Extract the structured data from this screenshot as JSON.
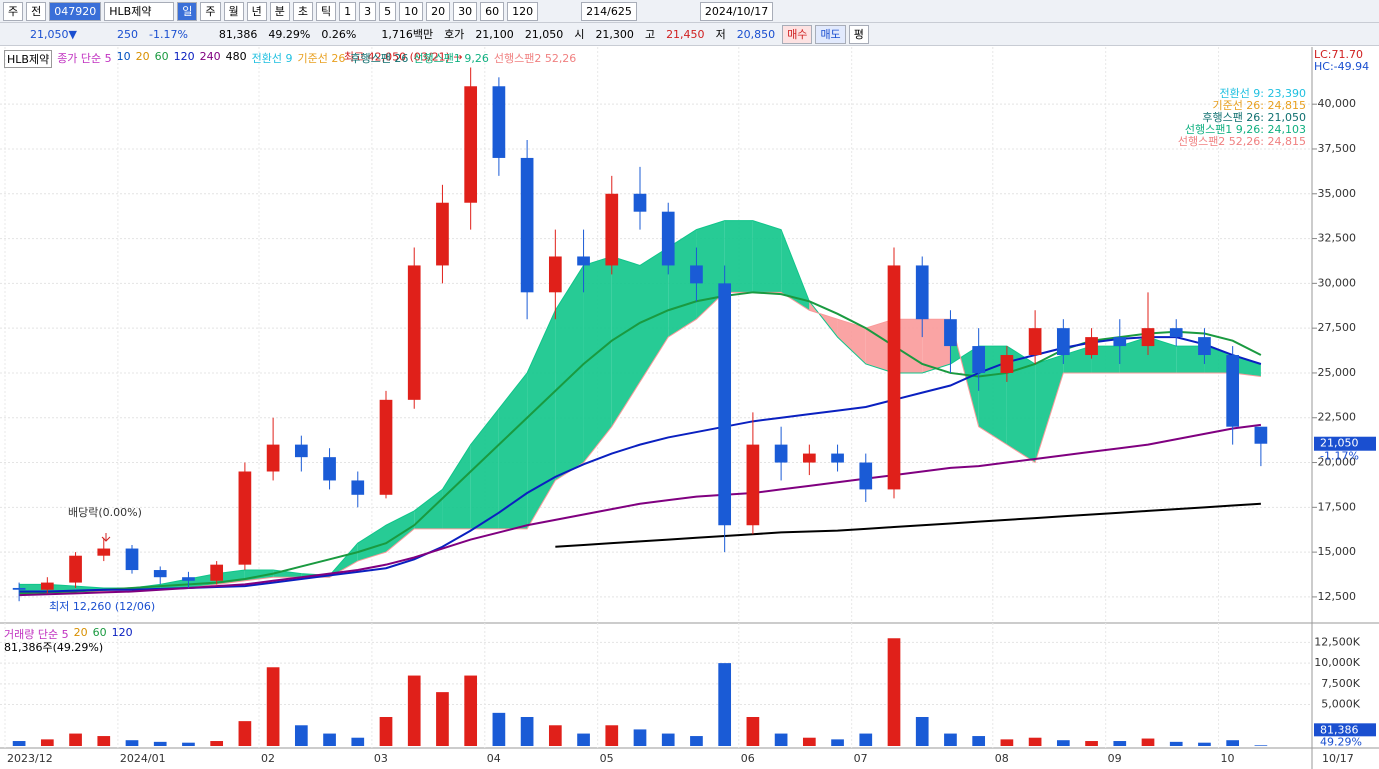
{
  "toolbar": {
    "row1": [
      "주",
      "전",
      "047920",
      "HLB제약",
      "일",
      "주",
      "월",
      "년",
      "분",
      "초",
      "틱",
      "1",
      "3",
      "5",
      "10",
      "20",
      "30",
      "60",
      "120",
      "214/625",
      "2024/10/17"
    ],
    "row2": [
      "21,050▼",
      "250",
      "-1.17%",
      "81,386",
      "49.29%",
      "0.26%",
      "1,716백만",
      "호가",
      "21,100",
      "21,050",
      "시",
      "21,300",
      "고",
      "21,450",
      "저",
      "20,850",
      "매수",
      "매도",
      "평"
    ]
  },
  "chart_data": {
    "type": "candlestick",
    "name": "HLB제약",
    "legend_prefix": [
      "종가 단순 5",
      "10",
      "20"
    ],
    "ichimoku_legend": [
      {
        "text": "전환선 9",
        "color": "#20c0e0"
      },
      {
        "text": "기준선 26",
        "color": "#e8a020"
      },
      {
        "text": "후행스팬 26",
        "color": "#107070"
      },
      {
        "text": "선행스팬1 9,26",
        "color": "#10b080"
      },
      {
        "text": "선행스팬2 52,26",
        "color": "#f08080"
      }
    ],
    "ichimoku_values": [
      {
        "text": "전환선 9: 23,390",
        "color": "#20c0e0"
      },
      {
        "text": "기준선 26: 24,815",
        "color": "#e8a020"
      },
      {
        "text": "후행스팬 26: 21,050",
        "color": "#107070"
      },
      {
        "text": "선행스팬1 9,26: 24,103",
        "color": "#10b080"
      },
      {
        "text": "선행스팬2 52,26: 24,815",
        "color": "#f08080"
      }
    ],
    "corner_labels": [
      "LC:71.70",
      "HC:-49.94"
    ],
    "annotations": [
      "최고 42,050 (03/21) →",
      "최저 12,260 (12/06)",
      "배당락(0.00%)"
    ],
    "last_price_label": "21,050",
    "last_change_label": "-1.17%",
    "last_date": "10/17",
    "categories": [
      "2023/12",
      null,
      null,
      null,
      "2024/01",
      null,
      null,
      null,
      null,
      "02",
      null,
      null,
      null,
      "03",
      null,
      null,
      null,
      "04",
      null,
      null,
      null,
      "05",
      null,
      null,
      null,
      null,
      "06",
      null,
      null,
      null,
      "07",
      null,
      null,
      null,
      null,
      "08",
      null,
      null,
      null,
      "09",
      null,
      null,
      null,
      "10",
      null
    ],
    "open": [
      13000,
      12900,
      13300,
      14800,
      15200,
      14000,
      13600,
      13400,
      14300,
      19500,
      21000,
      20300,
      19000,
      18200,
      23500,
      31000,
      34500,
      41000,
      37000,
      29500,
      31500,
      31000,
      35000,
      34000,
      31000,
      30000,
      16500,
      21000,
      20000,
      20500,
      20000,
      18500,
      31000,
      28000,
      26500,
      25000,
      26000,
      27500,
      26000,
      27000,
      26500,
      27500,
      27000,
      26000,
      22000
    ],
    "high": [
      13300,
      13600,
      15000,
      15800,
      15400,
      14200,
      13900,
      14500,
      20000,
      22500,
      21500,
      20800,
      19500,
      24000,
      32000,
      35500,
      42050,
      41500,
      38000,
      33000,
      33000,
      36000,
      36500,
      34500,
      32000,
      31000,
      22800,
      22000,
      21000,
      21000,
      20500,
      32000,
      31500,
      28500,
      27500,
      26500,
      28500,
      28000,
      27500,
      28000,
      29500,
      28000,
      27500,
      26500,
      22000
    ],
    "low": [
      12260,
      12700,
      13000,
      14500,
      13800,
      13200,
      13000,
      13200,
      14000,
      19000,
      19500,
      18500,
      17500,
      18000,
      23000,
      30000,
      33000,
      36000,
      28000,
      28000,
      29500,
      30500,
      33000,
      30500,
      29000,
      15000,
      16000,
      19000,
      19300,
      19500,
      17800,
      18000,
      27000,
      25000,
      24000,
      24500,
      25500,
      25500,
      25800,
      25500,
      26000,
      26500,
      25500,
      21000,
      19800
    ],
    "close": [
      12900,
      13300,
      14800,
      15200,
      14000,
      13600,
      13400,
      14300,
      19500,
      21000,
      20300,
      19000,
      18200,
      23500,
      31000,
      34500,
      41000,
      37000,
      29500,
      31500,
      31000,
      35000,
      34000,
      31000,
      30000,
      16500,
      21000,
      20000,
      20500,
      20000,
      18500,
      31000,
      28000,
      26500,
      25000,
      26000,
      27500,
      26000,
      27000,
      26500,
      27500,
      27000,
      26000,
      22000,
      21050
    ],
    "series": [
      {
        "name": "60",
        "color": "#1a9a40",
        "values": [
          12700,
          12750,
          12800,
          12900,
          13000,
          13100,
          13200,
          13300,
          13500,
          13800,
          14200,
          14600,
          15000,
          15500,
          16500,
          18000,
          19500,
          21000,
          22500,
          24000,
          25500,
          26800,
          27800,
          28500,
          29000,
          29300,
          29500,
          29400,
          29000,
          28300,
          27500,
          26500,
          25500,
          25000,
          24800,
          25000,
          25500,
          26300,
          26800,
          27000,
          27200,
          27300,
          27200,
          26800,
          26000
        ]
      },
      {
        "name": "120",
        "color": "#0a20c0",
        "values": [
          12800,
          12800,
          12850,
          12900,
          12900,
          12950,
          13000,
          13050,
          13100,
          13300,
          13500,
          13700,
          13900,
          14100,
          14600,
          15300,
          16200,
          17200,
          18300,
          19200,
          19900,
          20500,
          21000,
          21400,
          21700,
          22000,
          22300,
          22500,
          22700,
          22900,
          23100,
          23500,
          23900,
          24300,
          25000,
          25600,
          26000,
          26400,
          26700,
          26900,
          27000,
          27000,
          26600,
          26000,
          25500
        ]
      },
      {
        "name": "240",
        "color": "#800080",
        "values": [
          12600,
          12650,
          12700,
          12750,
          12800,
          12900,
          13000,
          13100,
          13200,
          13400,
          13600,
          13800,
          14000,
          14300,
          14700,
          15200,
          15700,
          16100,
          16500,
          16800,
          17100,
          17400,
          17700,
          17900,
          18100,
          18200,
          18300,
          18500,
          18700,
          18900,
          19100,
          19300,
          19500,
          19700,
          19800,
          20000,
          20200,
          20400,
          20600,
          20800,
          21000,
          21300,
          21600,
          21900,
          22100
        ]
      },
      {
        "name": "480",
        "color": "#000000",
        "values": [
          null,
          null,
          null,
          null,
          null,
          null,
          null,
          null,
          null,
          null,
          null,
          null,
          null,
          null,
          null,
          null,
          null,
          null,
          null,
          15300,
          15400,
          15500,
          15600,
          15700,
          15800,
          15900,
          16000,
          16100,
          16150,
          16200,
          16300,
          16400,
          16500,
          16600,
          16700,
          16800,
          16900,
          17000,
          17100,
          17200,
          17300,
          17400,
          17500,
          17600,
          17700
        ]
      }
    ],
    "span1": [
      13200,
      13200,
      13100,
      13000,
      13000,
      13200,
      13500,
      13800,
      14000,
      14000,
      13800,
      13700,
      15500,
      16500,
      17300,
      18500,
      21000,
      23000,
      25000,
      28500,
      31000,
      31500,
      31000,
      32000,
      33000,
      33500,
      33500,
      33000,
      29000,
      27000,
      25500,
      25000,
      25000,
      25500,
      26500,
      26500,
      25500,
      26000,
      26500,
      26500,
      27000,
      26500,
      26500,
      26000,
      25500
    ],
    "span2": [
      12800,
      12800,
      12800,
      12800,
      12900,
      12900,
      13000,
      13200,
      13400,
      13600,
      13600,
      13600,
      14500,
      15000,
      16300,
      16300,
      16300,
      16300,
      16300,
      19000,
      20000,
      22000,
      24500,
      27000,
      28000,
      29500,
      29500,
      29500,
      28500,
      28000,
      27500,
      28000,
      28000,
      28000,
      22000,
      21000,
      20000,
      25000,
      25000,
      25000,
      25000,
      25000,
      25000,
      25000,
      24800
    ],
    "up_color": "#e0201a",
    "down_color": "#1a5bd6",
    "cloud_up_color": "#10c58a",
    "cloud_down_color": "#f99a9a",
    "ylim": [
      11100,
      43080
    ],
    "yticks": [
      {
        "value": 12500,
        "label": "12,500"
      },
      {
        "value": 15000,
        "label": "15,000"
      },
      {
        "value": 17500,
        "label": "17,500"
      },
      {
        "value": 20000,
        "label": "20,000"
      },
      {
        "value": 22500,
        "label": "22,500"
      },
      {
        "value": 25000,
        "label": "25,000"
      },
      {
        "value": 27500,
        "label": "27,500"
      },
      {
        "value": 30000,
        "label": "30,000"
      },
      {
        "value": 32500,
        "label": "32,500"
      },
      {
        "value": 35000,
        "label": "35,000"
      },
      {
        "value": 37500,
        "label": "37,500"
      },
      {
        "value": 40000,
        "label": "40,000"
      }
    ],
    "grid": true,
    "volume": {
      "legend": [
        "거래량 단순 5",
        "20",
        "60",
        "120"
      ],
      "info": "81,386주(49.29%)",
      "values": [
        600000,
        800000,
        1500000,
        1200000,
        700000,
        500000,
        400000,
        600000,
        3000000,
        9500000,
        2500000,
        1500000,
        1000000,
        3500000,
        8500000,
        6500000,
        8500000,
        4000000,
        3500000,
        2500000,
        1500000,
        2500000,
        2000000,
        1500000,
        1200000,
        10000000,
        3500000,
        1500000,
        1000000,
        800000,
        1500000,
        13000000,
        3500000,
        1500000,
        1200000,
        800000,
        1000000,
        700000,
        600000,
        600000,
        900000,
        500000,
        400000,
        700000,
        81386
      ],
      "last_label": "81,386",
      "last_pct": "49.29%",
      "ylim": [
        0,
        14600000
      ],
      "yticks": [
        {
          "value": 5000000,
          "label": "5,000K"
        },
        {
          "value": 7500000,
          "label": "7,500K"
        },
        {
          "value": 10000000,
          "label": "10,000K"
        },
        {
          "value": 12500000,
          "label": "12,500K"
        }
      ]
    }
  }
}
